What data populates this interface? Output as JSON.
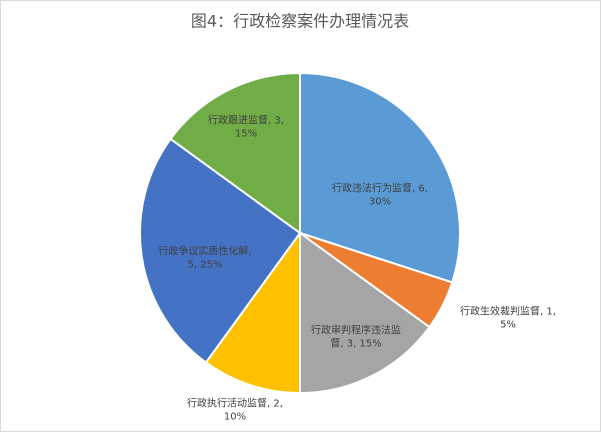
{
  "chart_data": {
    "type": "pie",
    "title": "图4：行政检察案件办理情况表",
    "categories": [
      "行政违法行为监督",
      "行政生效裁判监督",
      "行政审判程序违法监督",
      "行政执行活动监督",
      "行政争议实质性化解",
      "行政跟进监督"
    ],
    "values": [
      6,
      1,
      3,
      2,
      5,
      3
    ],
    "colors": [
      "#5b9bd5",
      "#ed7d31",
      "#a5a5a5",
      "#ffc000",
      "#4472c4",
      "#70ad47"
    ],
    "value_labels": [
      [
        "行政违法行为监督, 6,",
        "30%"
      ],
      [
        "行政生效裁判监督, 1,",
        "5%"
      ],
      [
        "行政审判程序违法监",
        "督, 3, 15%"
      ],
      [
        "行政执行活动监督, 2,",
        "10%"
      ],
      [
        "行政争议实质性化解,",
        "5, 25%"
      ],
      [
        "行政跟进监督, 3,",
        "15%"
      ]
    ]
  }
}
